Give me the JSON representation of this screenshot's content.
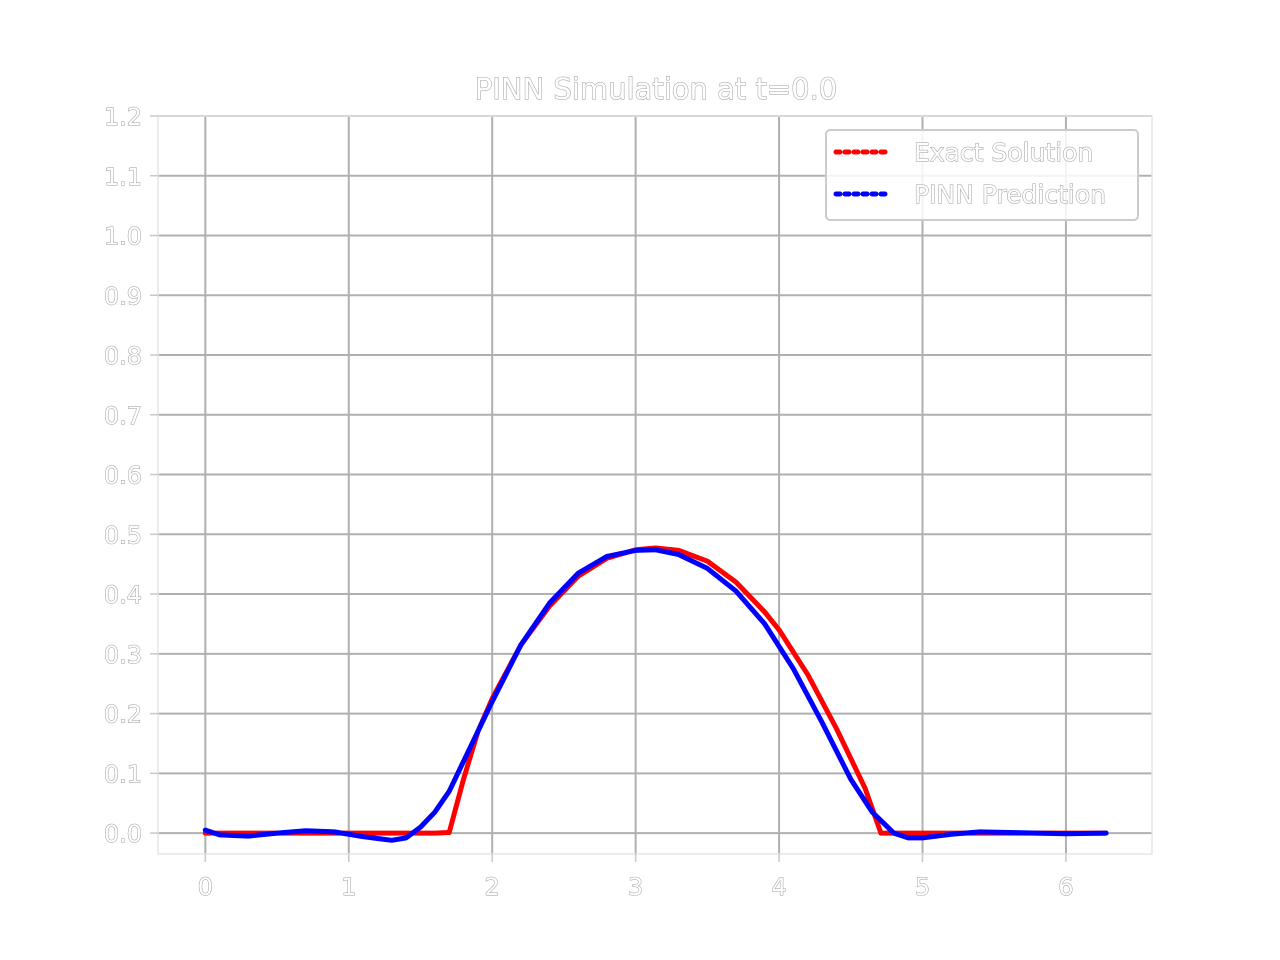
{
  "chart_data": {
    "type": "line",
    "title": "PINN Simulation at t=0.0",
    "xlabel": "",
    "ylabel": "",
    "xlim": [
      -0.33,
      6.6
    ],
    "ylim": [
      -0.035,
      1.2
    ],
    "xticks": [
      0,
      1,
      2,
      3,
      4,
      5,
      6
    ],
    "xtick_labels": [
      "0",
      "1",
      "2",
      "3",
      "4",
      "5",
      "6"
    ],
    "yticks": [
      0.0,
      0.1,
      0.2,
      0.3,
      0.4,
      0.5,
      0.6,
      0.7,
      0.8,
      0.9,
      1.0,
      1.1,
      1.2
    ],
    "ytick_labels": [
      "0.0",
      "0.1",
      "0.2",
      "0.3",
      "0.4",
      "0.5",
      "0.6",
      "0.7",
      "0.8",
      "0.9",
      "1.0",
      "1.1",
      "1.2"
    ],
    "grid": true,
    "legend_position": "upper right",
    "series": [
      {
        "name": "Exact Solution",
        "color": "#ff0000",
        "style": "dotted",
        "x": [
          0,
          0.5,
          1.0,
          1.5,
          1.57,
          1.6,
          1.7,
          1.8,
          1.9,
          2.0,
          2.2,
          2.4,
          2.6,
          2.8,
          3.0,
          3.14,
          3.3,
          3.5,
          3.7,
          3.9,
          4.0,
          4.2,
          4.4,
          4.6,
          4.71,
          4.75,
          5.0,
          5.5,
          6.0,
          6.28
        ],
        "y": [
          0.0,
          0.0,
          0.0,
          0.0,
          0.0,
          0.0,
          0.001,
          0.09,
          0.17,
          0.225,
          0.315,
          0.38,
          0.43,
          0.46,
          0.474,
          0.477,
          0.473,
          0.455,
          0.42,
          0.37,
          0.34,
          0.265,
          0.175,
          0.075,
          0.0,
          0.0,
          0.0,
          0.0,
          0.0,
          0.0
        ]
      },
      {
        "name": "PINN Prediction",
        "color": "#0000ff",
        "style": "dotted",
        "x": [
          0.0,
          0.1,
          0.3,
          0.5,
          0.7,
          0.9,
          1.1,
          1.3,
          1.4,
          1.5,
          1.6,
          1.7,
          1.8,
          2.0,
          2.2,
          2.4,
          2.6,
          2.8,
          3.0,
          3.14,
          3.3,
          3.5,
          3.7,
          3.9,
          4.1,
          4.3,
          4.5,
          4.65,
          4.8,
          4.9,
          5.0,
          5.2,
          5.4,
          5.6,
          5.8,
          6.0,
          6.28
        ],
        "y": [
          0.005,
          -0.003,
          -0.005,
          0.0,
          0.004,
          0.002,
          -0.006,
          -0.012,
          -0.008,
          0.01,
          0.035,
          0.07,
          0.12,
          0.22,
          0.315,
          0.385,
          0.435,
          0.463,
          0.473,
          0.474,
          0.466,
          0.443,
          0.405,
          0.35,
          0.275,
          0.185,
          0.09,
          0.035,
          0.0,
          -0.008,
          -0.008,
          -0.002,
          0.002,
          0.001,
          0.0,
          -0.001,
          0.0
        ]
      }
    ]
  }
}
